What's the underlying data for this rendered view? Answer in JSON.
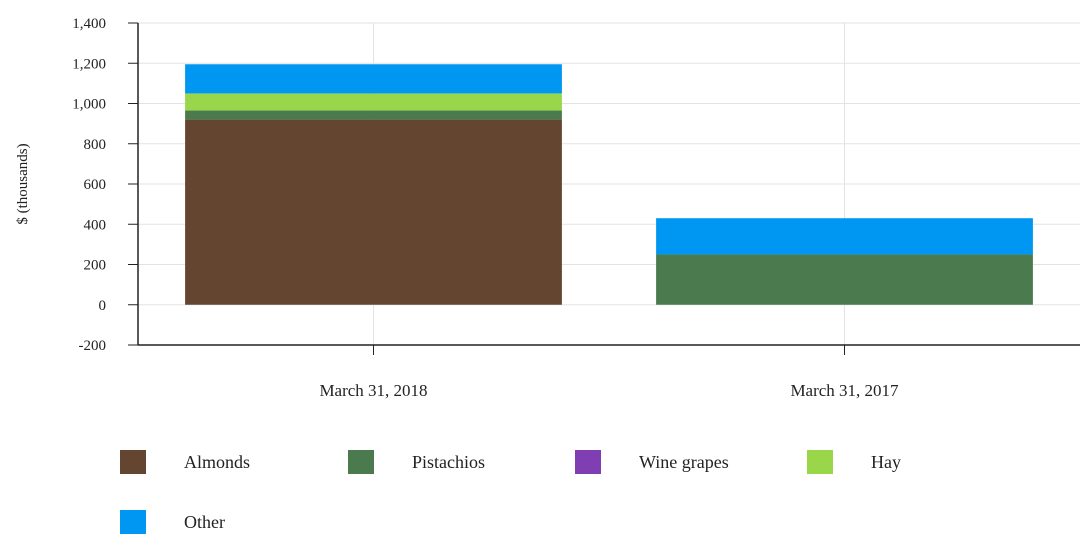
{
  "chart_data": {
    "type": "bar",
    "stacked": true,
    "categories": [
      "March 31, 2018",
      "March 31, 2017"
    ],
    "series": [
      {
        "name": "Almonds",
        "color": "#634530",
        "values": [
          920,
          0
        ]
      },
      {
        "name": "Pistachios",
        "color": "#4a7a4e",
        "values": [
          45,
          250
        ]
      },
      {
        "name": "Wine grapes",
        "color": "#7f3fb2",
        "values": [
          0,
          0
        ]
      },
      {
        "name": "Hay",
        "color": "#99d64a",
        "values": [
          85,
          0
        ]
      },
      {
        "name": "Other",
        "color": "#0097f3",
        "values": [
          145,
          180
        ]
      }
    ],
    "ylabel": "$ (thousands)",
    "ylim": [
      -200,
      1400
    ],
    "yticks": [
      -200,
      0,
      200,
      400,
      600,
      800,
      1000,
      1200,
      1400
    ],
    "ytick_labels": [
      "-200",
      "0",
      "200",
      "400",
      "600",
      "800",
      "1,000",
      "1,200",
      "1,400"
    ],
    "grid": true,
    "legend_position": "bottom"
  }
}
